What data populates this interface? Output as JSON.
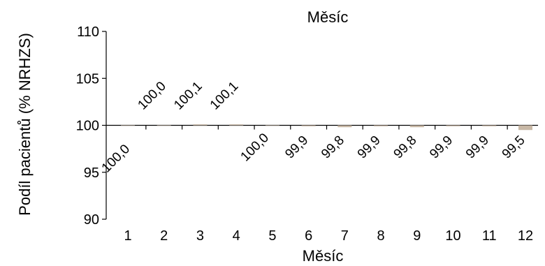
{
  "chart_data": {
    "type": "bar",
    "title": "Měsíc",
    "xlabel": "Měsíc",
    "ylabel": "Podíl pacientů (% NRHZS)",
    "categories": [
      "1",
      "2",
      "3",
      "4",
      "5",
      "6",
      "7",
      "8",
      "9",
      "10",
      "11",
      "12"
    ],
    "values": [
      100.0,
      100.0,
      100.1,
      100.1,
      100.0,
      99.9,
      99.8,
      99.9,
      99.8,
      99.9,
      99.9,
      99.5
    ],
    "value_labels": [
      "100,0",
      "100,0",
      "100,1",
      "100,1",
      "100,0",
      "99,9",
      "99,8",
      "99,9",
      "99,8",
      "99,9",
      "99,9",
      "99,5"
    ],
    "yticks": [
      "90",
      "95",
      "100",
      "105",
      "110"
    ],
    "ylim": [
      90,
      110
    ],
    "baseline": 100,
    "bar_color": "#c8b8a6",
    "grid": false,
    "legend": "none"
  }
}
